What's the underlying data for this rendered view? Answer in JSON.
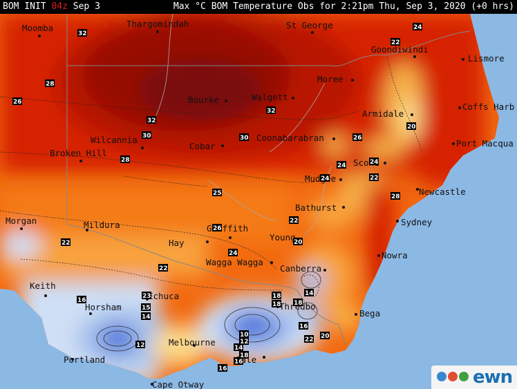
{
  "header": {
    "left_model": "BOM INIT",
    "left_run": "04z",
    "left_date": "Sep 3",
    "right_text": "Max °C BOM Temperature Obs for 2:21pm Thu, Sep 3, 2020 (+0 hrs)"
  },
  "colors": {
    "accent_red": "#e02020",
    "ocean": "#8cb8e4",
    "hot_dark": "#7a0a0a",
    "hot": "#d62000",
    "warm": "#f26a10",
    "mild": "#f8a23c",
    "cool_yellow": "#fbd98a",
    "cold": "#cfdff5",
    "colder": "#3c66d6"
  },
  "cities": [
    {
      "name": "Moomba"
    },
    {
      "name": "Thargomindah"
    },
    {
      "name": "St George"
    },
    {
      "name": "Goondiwindi"
    },
    {
      "name": "Lismore"
    },
    {
      "name": "Moree"
    },
    {
      "name": "Bourke"
    },
    {
      "name": "Walgett"
    },
    {
      "name": "Coffs Harb"
    },
    {
      "name": "Armidale"
    },
    {
      "name": "Wilcannia"
    },
    {
      "name": "Broken Hill"
    },
    {
      "name": "Cobar"
    },
    {
      "name": "Coonabarabran"
    },
    {
      "name": "Port Macqua"
    },
    {
      "name": "Scone"
    },
    {
      "name": "Mudgee"
    },
    {
      "name": "Newcastle"
    },
    {
      "name": "Bathurst"
    },
    {
      "name": "Sydney"
    },
    {
      "name": "Morgan"
    },
    {
      "name": "Mildura"
    },
    {
      "name": "Griffith"
    },
    {
      "name": "Hay"
    },
    {
      "name": "Young"
    },
    {
      "name": "Wagga Wagga"
    },
    {
      "name": "Nowra"
    },
    {
      "name": "Canberra"
    },
    {
      "name": "Keith"
    },
    {
      "name": "Echuca"
    },
    {
      "name": "Horsham"
    },
    {
      "name": "Thredbo"
    },
    {
      "name": "Bega"
    },
    {
      "name": "Melbourne"
    },
    {
      "name": "Portland"
    },
    {
      "name": "Sale"
    },
    {
      "name": "Cape Otway"
    }
  ],
  "contour_labels": [
    "32",
    "24",
    "28",
    "26",
    "32",
    "30",
    "32",
    "30",
    "28",
    "26",
    "22",
    "24",
    "24",
    "24",
    "20",
    "25",
    "28",
    "26",
    "22",
    "22",
    "24",
    "22",
    "20",
    "16",
    "15",
    "14",
    "12",
    "22",
    "23",
    "18",
    "18",
    "18",
    "14",
    "16",
    "22",
    "20",
    "18",
    "16",
    "14",
    "12",
    "10",
    "16"
  ],
  "logo": {
    "text": "ewn"
  }
}
